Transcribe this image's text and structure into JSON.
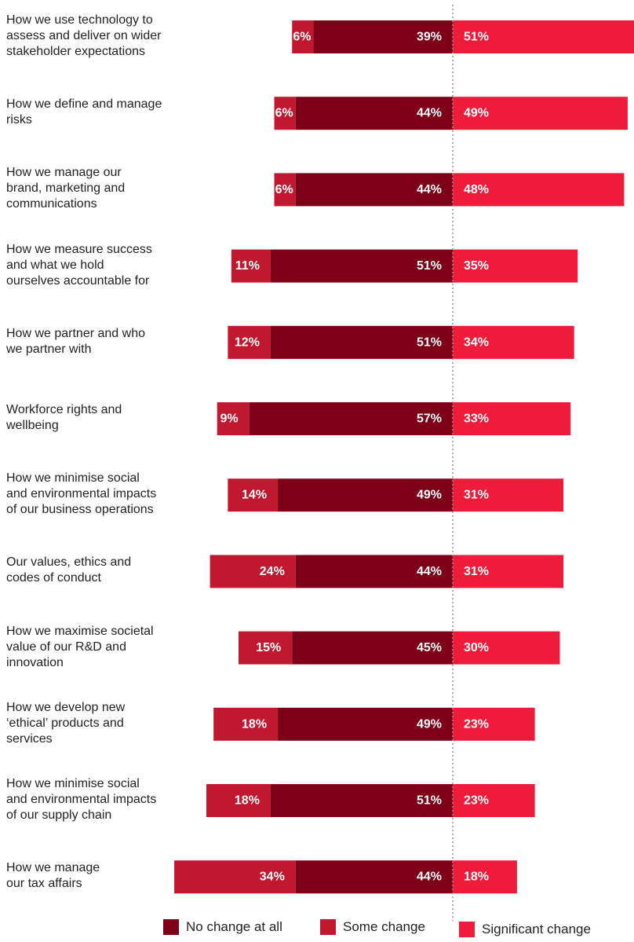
{
  "chart_data": {
    "type": "bar",
    "orientation": "horizontal",
    "stacking": "diverging",
    "categories": [
      "How we use technology to assess and deliver on wider stakeholder expectations",
      "How we define and manage risks",
      "How we manage our brand, marketing and communications",
      "How we measure success and what we hold ourselves accountable for",
      "How we partner and who we partner with",
      "Workforce rights and wellbeing",
      "How we minimise social and environmental impacts of our business operations",
      "Our values, ethics and codes of conduct",
      "How we maximise societal value of our R&D and innovation",
      "How we develop new ‘ethical’ products and services",
      "How we minimise social and environmental impacts of our supply chain",
      "How we manage our tax affairs"
    ],
    "category_lines": [
      [
        "How we use technology to",
        "assess and deliver on wider",
        "stakeholder expectations"
      ],
      [
        "How we define and manage",
        "risks"
      ],
      [
        "How we manage our",
        "brand, marketing and",
        "communications"
      ],
      [
        "How we measure success",
        "and what we hold",
        "ourselves accountable for"
      ],
      [
        "How we partner and who",
        "we partner with"
      ],
      [
        "Workforce rights and",
        "wellbeing"
      ],
      [
        "How we minimise social",
        "and environmental impacts",
        "of our business operations"
      ],
      [
        "Our values, ethics and",
        "codes of conduct"
      ],
      [
        "How we maximise societal",
        "value of our R&D and",
        "innovation"
      ],
      [
        "How we develop new",
        "‘ethical’ products and",
        "services"
      ],
      [
        "How we minimise social",
        "and environmental impacts",
        "of our supply chain"
      ],
      [
        "How we manage",
        "our tax affairs"
      ]
    ],
    "series": [
      {
        "name": "No change at all",
        "color": "#7d0018",
        "values": [
          39,
          44,
          44,
          51,
          51,
          57,
          49,
          44,
          45,
          49,
          51,
          44
        ],
        "side": "left"
      },
      {
        "name": "Some change",
        "color": "#c0182f",
        "values": [
          6,
          6,
          6,
          11,
          12,
          9,
          14,
          24,
          15,
          18,
          18,
          34
        ],
        "side": "left"
      },
      {
        "name": "Significant change",
        "color": "#ee1c3a",
        "values": [
          51,
          49,
          48,
          35,
          34,
          33,
          31,
          31,
          30,
          23,
          23,
          18
        ],
        "side": "right"
      }
    ],
    "value_suffix": "%",
    "legend_position": "bottom",
    "grid": false,
    "baseline": "dotted"
  }
}
